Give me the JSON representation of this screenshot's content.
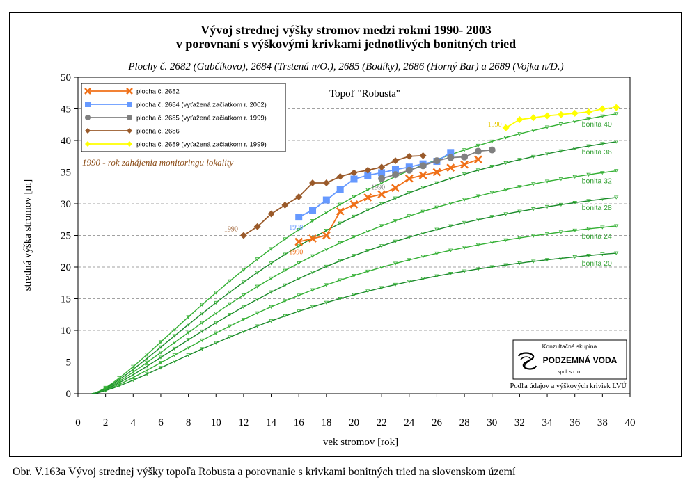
{
  "title_line1": "Vývoj strednej výšky stromov medzi rokmi 1990- 2003",
  "title_line2": "v porovnaní s výškovými krivkami jednotlivých bonitných tried",
  "subtitle": "Plochy č. 2682 (Gabčíkovo), 2684 (Trstená n/O.), 2685 (Bodíky), 2686 (Horný Bar) a 2689 (Vojka n/D.)",
  "caption": "Obr. V.163a Vývoj strednej výšky topoľa Robusta a porovnanie s krivkami bonitných tried na slovenskom území",
  "chart_data": {
    "type": "line",
    "title": "Topoľ \"Robusta\"",
    "xlabel": "vek stromov [rok]",
    "ylabel": "stredná výška stromov [m]",
    "xlim": [
      0,
      40
    ],
    "ylim": [
      0,
      50
    ],
    "x_ticks": [
      0,
      2,
      4,
      6,
      8,
      10,
      12,
      14,
      16,
      18,
      20,
      22,
      24,
      26,
      28,
      30,
      32,
      34,
      36,
      38,
      40
    ],
    "y_ticks": [
      0,
      5,
      10,
      15,
      20,
      25,
      30,
      35,
      40,
      45,
      50
    ],
    "grid": "horizontal dashed",
    "legend_position": "top-left",
    "annotation": "1990 - rok zahájenia monitoringu lokality",
    "source_note": "Podľa údajov a výškových kriviek LVÚ",
    "logo": {
      "top": "Konzultačná skupina",
      "name": "PODZEMNÁ VODA",
      "sub": "spol. s r. o."
    },
    "bonity": [
      {
        "label": "bonita 40",
        "top": 44.2
      },
      {
        "label": "bonita 36",
        "top": 39.8
      },
      {
        "label": "bonita 32",
        "top": 35.2
      },
      {
        "label": "bonita 28",
        "top": 31.0
      },
      {
        "label": "bonita 24",
        "top": 26.5
      },
      {
        "label": "bonita 20",
        "top": 22.2
      }
    ],
    "series": [
      {
        "name": "plocha č. 2682",
        "color": "#f07018",
        "marker": "x",
        "x": [
          16,
          17,
          18,
          19,
          20,
          21,
          22,
          23,
          24,
          25,
          26,
          27,
          28,
          29
        ],
        "y": [
          24.0,
          24.5,
          25.0,
          28.8,
          29.9,
          31.0,
          31.5,
          32.5,
          34.0,
          34.5,
          35.0,
          35.7,
          36.2,
          37.0
        ],
        "start_label": "1990"
      },
      {
        "name": "plocha č. 2684 (vyťažená začiatkom r. 2002)",
        "color": "#6699ff",
        "marker": "square",
        "x": [
          16,
          17,
          18,
          19,
          20,
          21,
          22,
          23,
          24,
          25,
          26,
          27
        ],
        "y": [
          27.9,
          29.0,
          30.6,
          32.3,
          33.9,
          34.5,
          34.9,
          35.4,
          35.8,
          36.3,
          36.7,
          38.1
        ],
        "start_label": "1990"
      },
      {
        "name": "plocha č. 2685 (vyťažená začiatkom r. 1999)",
        "color": "#808080",
        "marker": "circle",
        "x": [
          22,
          23,
          24,
          25,
          26,
          27,
          28,
          29,
          30
        ],
        "y": [
          34.0,
          34.6,
          35.3,
          36.0,
          36.8,
          37.3,
          37.4,
          38.3,
          38.5
        ],
        "start_label": "1990"
      },
      {
        "name": "plocha č. 2686",
        "color": "#9a5a2a",
        "marker": "diamond",
        "x": [
          12,
          13,
          14,
          15,
          16,
          17,
          18,
          19,
          20,
          21,
          22,
          23,
          24,
          25
        ],
        "y": [
          25.0,
          26.4,
          28.4,
          29.8,
          31.1,
          33.3,
          33.3,
          34.3,
          34.9,
          35.3,
          35.8,
          36.8,
          37.5,
          37.6
        ],
        "start_label": "1990"
      },
      {
        "name": "plocha č. 2689 (vyťažená začiatkom r. 1999)",
        "color": "#ffff00",
        "marker": "diamond",
        "x": [
          31,
          32,
          33,
          34,
          35,
          36,
          37,
          38,
          39
        ],
        "y": [
          42.0,
          43.3,
          43.6,
          43.9,
          44.1,
          44.3,
          44.5,
          45.0,
          45.2
        ],
        "start_label": "1990"
      }
    ]
  }
}
